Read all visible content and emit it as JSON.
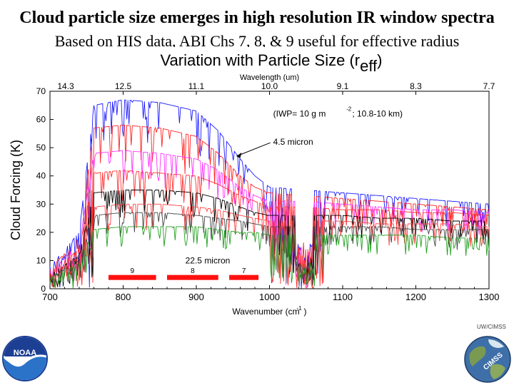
{
  "slide": {
    "headline": "Cloud particle size emerges in high resolution IR window spectra",
    "subline": "Based on HIS data, ABI Chs 7, 8, & 9 useful for effective radius",
    "uw_cimss": "UW/CIMSS"
  },
  "logos": {
    "noaa": "NOAA",
    "cimss": "CIMSS"
  },
  "chart_data": {
    "type": "line",
    "title_main": "Variation with Particle Size (r",
    "title_sub": "eff",
    "title_close": ")",
    "xlabel": "Wavenumber (cm",
    "xlabel_sup": "-1",
    "xlabel_close": ")",
    "ylabel": "Cloud Forcing (K)",
    "top_axis_label": "Wavelength (um)",
    "xlim": [
      700,
      1300
    ],
    "ylim": [
      0,
      70
    ],
    "x_ticks": [
      700,
      800,
      900,
      1000,
      1100,
      1200,
      1300
    ],
    "y_ticks": [
      0,
      10,
      20,
      30,
      40,
      50,
      60,
      70
    ],
    "top_ticks": [
      {
        "wavenumber": 700,
        "label": "14.3"
      },
      {
        "wavenumber": 800,
        "label": "12.5"
      },
      {
        "wavenumber": 900,
        "label": "11.1"
      },
      {
        "wavenumber": 1000,
        "label": "10.0"
      },
      {
        "wavenumber": 1100,
        "label": "9.1"
      },
      {
        "wavenumber": 1200,
        "label": "8.3"
      },
      {
        "wavenumber": 1300,
        "label": "7.7"
      }
    ],
    "iwp_annotation": "(IWP= 10 g m",
    "iwp_sup": "-2",
    "iwp_rest": "; 10.8-10 km)",
    "annotations": [
      {
        "text": "4.5 micron",
        "x": 1005,
        "y": 51
      },
      {
        "text": "22.5 micron",
        "x": 885,
        "y": 9
      }
    ],
    "abi_channels": [
      {
        "label": "9",
        "x_start": 780,
        "x_end": 845,
        "y": 4
      },
      {
        "label": "8",
        "x_start": 860,
        "x_end": 930,
        "y": 4
      },
      {
        "label": "7",
        "x_start": 945,
        "x_end": 985,
        "y": 4
      }
    ],
    "series": [
      {
        "color": "#1a1aff",
        "x": [
          700,
          740,
          760,
          800,
          850,
          900,
          930,
          960,
          980,
          1000,
          1050,
          1100,
          1150,
          1200,
          1250,
          1300
        ],
        "y": [
          8,
          20,
          65,
          67,
          66,
          63,
          56,
          46,
          40,
          36,
          35,
          34,
          33,
          32,
          31,
          30
        ]
      },
      {
        "color": "#ff2020",
        "x": [
          700,
          740,
          760,
          800,
          850,
          900,
          930,
          960,
          980,
          1000,
          1050,
          1100,
          1150,
          1200,
          1250,
          1300
        ],
        "y": [
          7,
          18,
          57,
          58,
          57,
          54,
          48,
          40,
          36,
          34,
          33,
          32,
          31,
          30,
          29,
          28
        ]
      },
      {
        "color": "#ff30ff",
        "x": [
          700,
          740,
          760,
          800,
          850,
          900,
          930,
          960,
          980,
          1000,
          1050,
          1100,
          1150,
          1200,
          1250,
          1300
        ],
        "y": [
          6,
          16,
          48,
          49,
          48,
          46,
          42,
          36,
          33,
          31,
          31,
          30,
          29,
          28,
          28,
          27
        ]
      },
      {
        "color": "#ff3030",
        "x": [
          700,
          740,
          760,
          800,
          850,
          900,
          930,
          960,
          980,
          1000,
          1050,
          1100,
          1150,
          1200,
          1250,
          1300
        ],
        "y": [
          6,
          14,
          41,
          42,
          41,
          40,
          37,
          33,
          31,
          29,
          29,
          28,
          28,
          27,
          27,
          26
        ]
      },
      {
        "color": "#000000",
        "x": [
          700,
          740,
          760,
          800,
          850,
          900,
          930,
          960,
          980,
          1000,
          1050,
          1100,
          1150,
          1200,
          1250,
          1300
        ],
        "y": [
          5,
          12,
          34,
          35,
          35,
          34,
          32,
          29,
          27,
          26,
          26,
          26,
          25,
          25,
          24,
          24
        ]
      },
      {
        "color": "#ff4040",
        "x": [
          700,
          740,
          760,
          800,
          850,
          900,
          930,
          960,
          980,
          1000,
          1050,
          1100,
          1150,
          1200,
          1250,
          1300
        ],
        "y": [
          5,
          11,
          29,
          30,
          30,
          29,
          28,
          26,
          25,
          24,
          24,
          24,
          23,
          23,
          23,
          22
        ]
      },
      {
        "color": "#444444",
        "x": [
          700,
          740,
          760,
          800,
          850,
          900,
          930,
          960,
          980,
          1000,
          1050,
          1100,
          1150,
          1200,
          1250,
          1300
        ],
        "y": [
          4,
          10,
          26,
          27,
          27,
          26,
          25,
          24,
          23,
          22,
          22,
          22,
          22,
          21,
          21,
          21
        ]
      },
      {
        "color": "#20a020",
        "x": [
          700,
          740,
          760,
          800,
          850,
          900,
          930,
          960,
          980,
          1000,
          1050,
          1100,
          1150,
          1200,
          1250,
          1300
        ],
        "y": [
          4,
          9,
          21,
          22,
          22,
          22,
          21,
          20,
          20,
          19,
          19,
          19,
          19,
          19,
          18,
          18
        ]
      }
    ],
    "grid": false,
    "legend": "none"
  }
}
